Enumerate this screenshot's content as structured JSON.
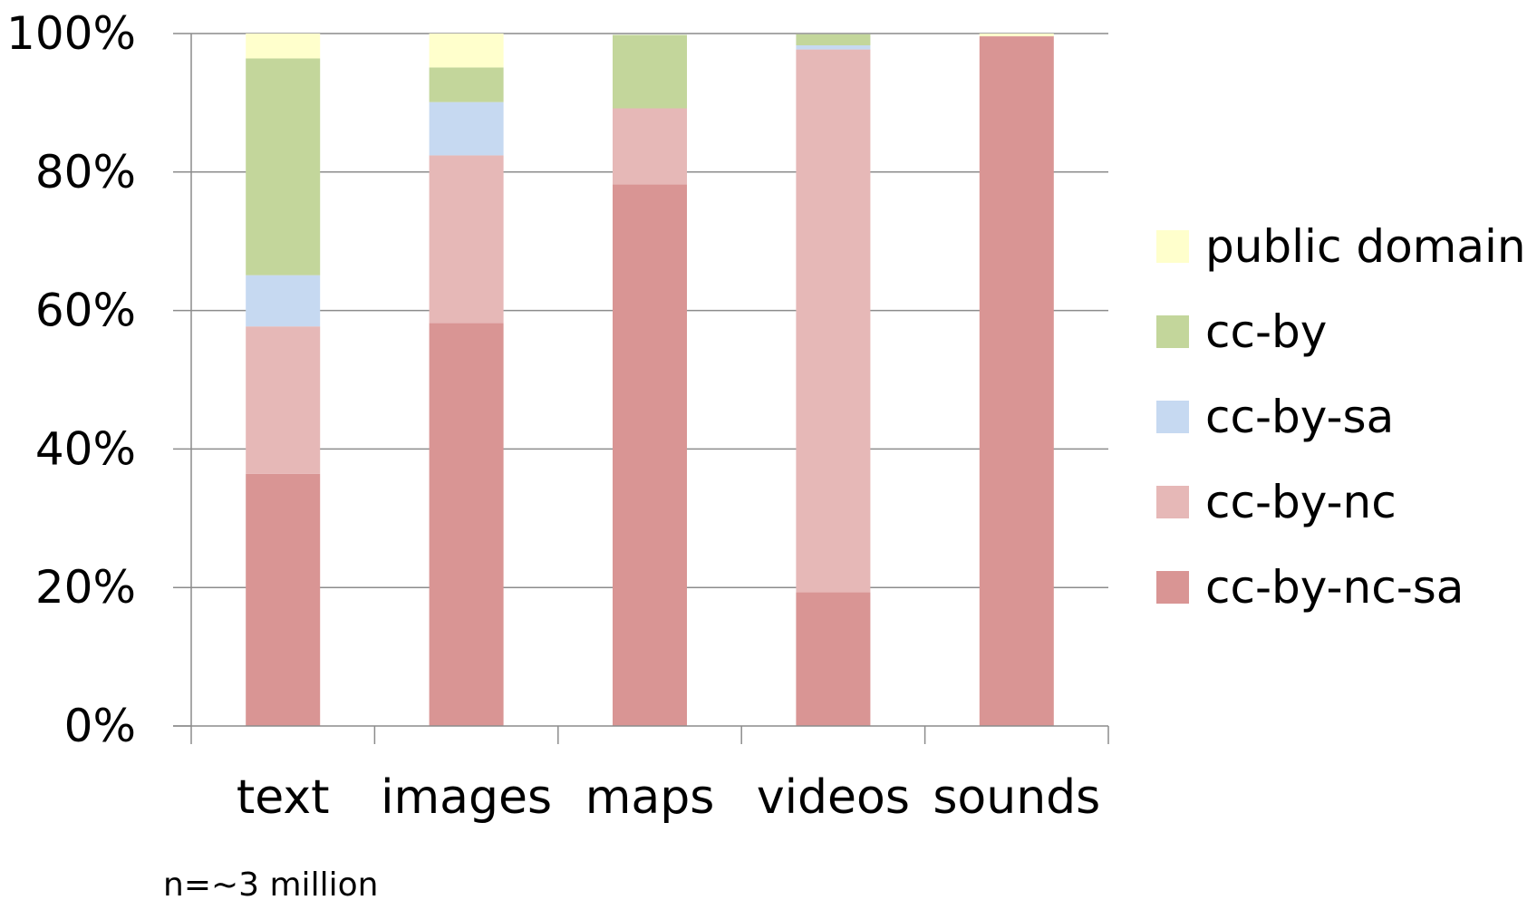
{
  "chart_data": {
    "type": "bar",
    "stacked": true,
    "percent": true,
    "title": "",
    "xlabel": "",
    "ylabel": "",
    "ylim": [
      0,
      100
    ],
    "yticks": [
      "0%",
      "20%",
      "40%",
      "60%",
      "80%",
      "100%"
    ],
    "grid": "horizontal",
    "legend_position": "right",
    "categories": [
      "text",
      "images",
      "maps",
      "videos",
      "sounds"
    ],
    "series": [
      {
        "name": "cc-by-nc-sa",
        "color": "#d99594",
        "values": [
          36.4,
          58.2,
          78.2,
          19.3,
          99.6
        ]
      },
      {
        "name": "cc-by-nc",
        "color": "#e6b8b7",
        "values": [
          21.3,
          24.2,
          11.0,
          78.4,
          0.0
        ]
      },
      {
        "name": "cc-by-sa",
        "color": "#c6d9f1",
        "values": [
          7.4,
          7.7,
          0.0,
          0.6,
          0.0
        ]
      },
      {
        "name": "cc-by",
        "color": "#c3d69b",
        "values": [
          31.3,
          5.0,
          10.6,
          1.6,
          0.0
        ]
      },
      {
        "name": "public domain",
        "color": "#ffffcc",
        "values": [
          3.6,
          4.9,
          0.0,
          0.0,
          0.4
        ]
      }
    ],
    "legend_order": [
      "public domain",
      "cc-by",
      "cc-by-sa",
      "cc-by-nc",
      "cc-by-nc-sa"
    ],
    "annotation": "n=~3 million"
  }
}
